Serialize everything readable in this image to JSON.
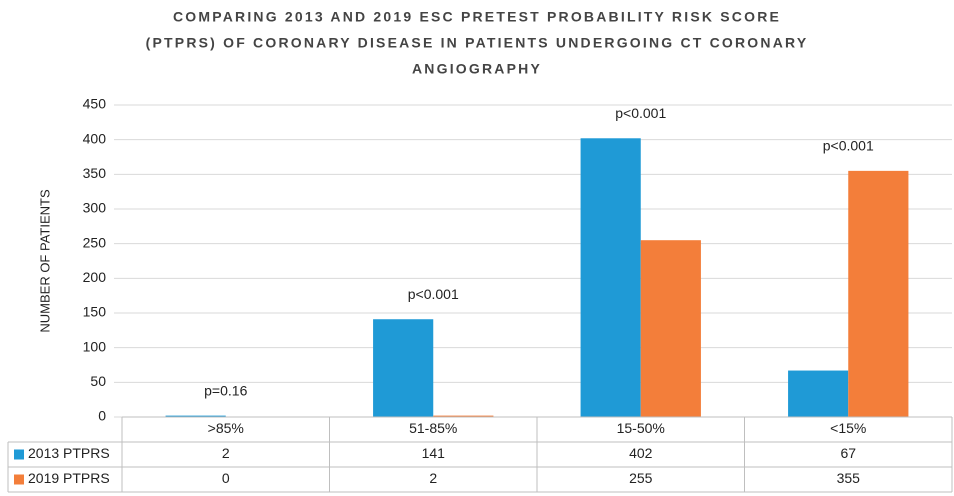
{
  "chart_data": {
    "type": "bar",
    "title": [
      "COMPARING 2013 AND 2019 ESC PRETEST PROBABILITY RISK SCORE",
      "(PTPRS) OF CORONARY DISEASE IN PATIENTS UNDERGOING CT CORONARY",
      "ANGIOGRAPHY"
    ],
    "y_label": "NUMBER OF PATIENTS",
    "categories": [
      ">85%",
      "51-85%",
      "15-50%",
      "<15%"
    ],
    "series": [
      {
        "name": "2013 PTPRS",
        "color": "#1f9ad6",
        "values": [
          2,
          141,
          402,
          67
        ]
      },
      {
        "name": "2019 PTPRS",
        "color": "#f37e3a",
        "values": [
          0,
          2,
          255,
          355
        ]
      }
    ],
    "annotations": [
      "p=0.16",
      "p<0.001",
      "p<0.001",
      "p<0.001"
    ],
    "ylim": [
      0,
      450
    ],
    "yticks": [
      0,
      50,
      100,
      150,
      200,
      250,
      300,
      350,
      400,
      450
    ],
    "grid": true
  }
}
